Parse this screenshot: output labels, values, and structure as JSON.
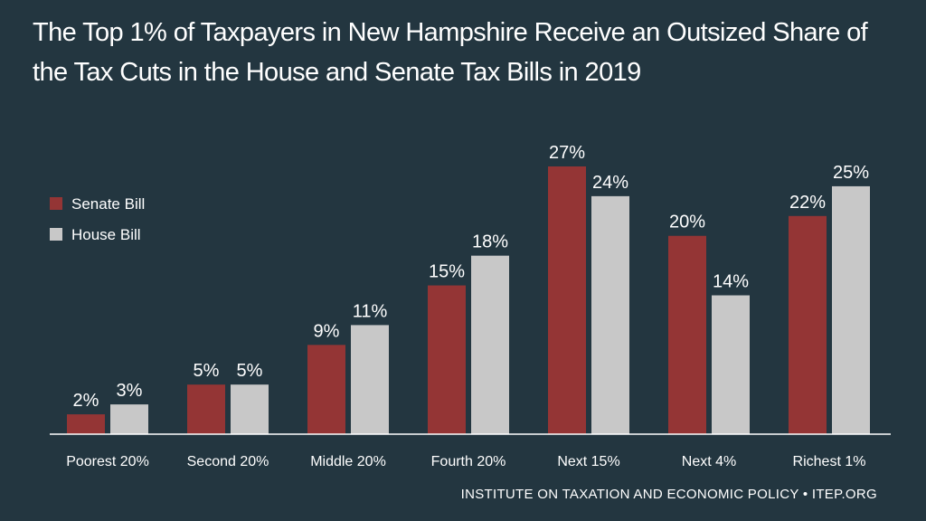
{
  "title": "The Top 1% of Taxpayers in New Hampshire Receive an Outsized Share of the Tax Cuts in the House and Senate Tax Bills in 2019",
  "footer": "INSTITUTE ON TAXATION AND ECONOMIC POLICY • ITEP.ORG",
  "colors": {
    "background": "#233640",
    "senate": "#943535",
    "house": "#c8c8c8",
    "text": "#ffffff"
  },
  "chart_data": {
    "type": "bar",
    "categories": [
      "Poorest 20%",
      "Second 20%",
      "Middle 20%",
      "Fourth 20%",
      "Next 15%",
      "Next 4%",
      "Richest 1%"
    ],
    "series": [
      {
        "name": "Senate Bill",
        "values": [
          2,
          5,
          9,
          15,
          27,
          20,
          22
        ],
        "labels": [
          "2%",
          "5%",
          "9%",
          "15%",
          "27%",
          "20%",
          "22%"
        ]
      },
      {
        "name": "House Bill",
        "values": [
          3,
          5,
          11,
          18,
          24,
          14,
          25
        ],
        "labels": [
          "3%",
          "5%",
          "11%",
          "18%",
          "24%",
          "14%",
          "25%"
        ]
      }
    ],
    "ylim": [
      0,
      28
    ],
    "grid": false,
    "legend_position": "top-left"
  }
}
